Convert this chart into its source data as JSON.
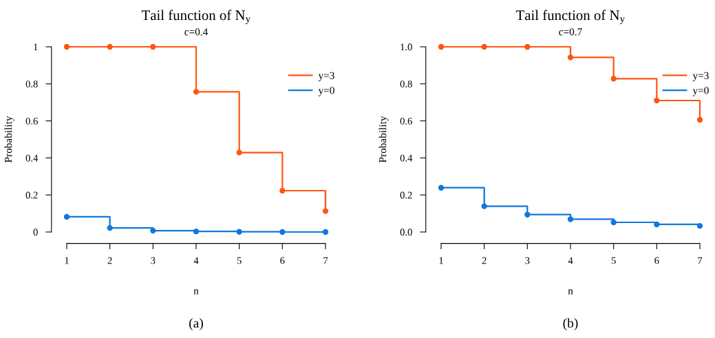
{
  "chart_data": [
    {
      "type": "step",
      "title": "Tail function of N$_{y}$",
      "subtitle": "c=0.4",
      "xlabel": "n",
      "ylabel": "Probability",
      "annotations": [
        "(a)"
      ],
      "x": [
        1,
        2,
        3,
        4,
        5,
        6,
        7
      ],
      "xlim": [
        1,
        7
      ],
      "xticks": [
        1,
        2,
        3,
        4,
        5,
        6,
        7
      ],
      "ylim": [
        0,
        1
      ],
      "yticks": [
        0,
        0.2,
        0.4,
        0.6,
        0.8,
        1
      ],
      "marker": "circle",
      "legend": "top right",
      "grid": false,
      "series": [
        {
          "name": "y=3",
          "color": "#ff5511",
          "values": [
            1,
            1,
            1,
            0.757,
            0.429,
            0.223,
            0.113
          ]
        },
        {
          "name": "y=0",
          "color": "#1177dd",
          "values": [
            0.082,
            0.022,
            0.007,
            0.003,
            0.001,
            0,
            0
          ]
        }
      ]
    },
    {
      "type": "step",
      "title": "Tail function of N$_{y}$",
      "subtitle": "c=0.7",
      "xlabel": "n",
      "ylabel": "Probability",
      "annotations": [
        "(b)"
      ],
      "x": [
        1,
        2,
        3,
        4,
        5,
        6,
        7
      ],
      "xlim": [
        1,
        7
      ],
      "xticks": [
        1,
        2,
        3,
        4,
        5,
        6,
        7
      ],
      "ylim": [
        0,
        1
      ],
      "yticks": [
        {
          "value": 0,
          "label": "0.0"
        },
        0.2,
        0.4,
        0.6,
        0.8,
        {
          "value": 1,
          "label": "1.0"
        }
      ],
      "marker": "circle",
      "legend": "top right",
      "grid": false,
      "series": [
        {
          "name": "y=3",
          "color": "#ff5511",
          "values": [
            1,
            1,
            1,
            0.943,
            0.828,
            0.71,
            0.606
          ]
        },
        {
          "name": "y=0",
          "color": "#1177dd",
          "values": [
            0.239,
            0.139,
            0.094,
            0.069,
            0.052,
            0.041,
            0.033
          ]
        }
      ]
    }
  ]
}
